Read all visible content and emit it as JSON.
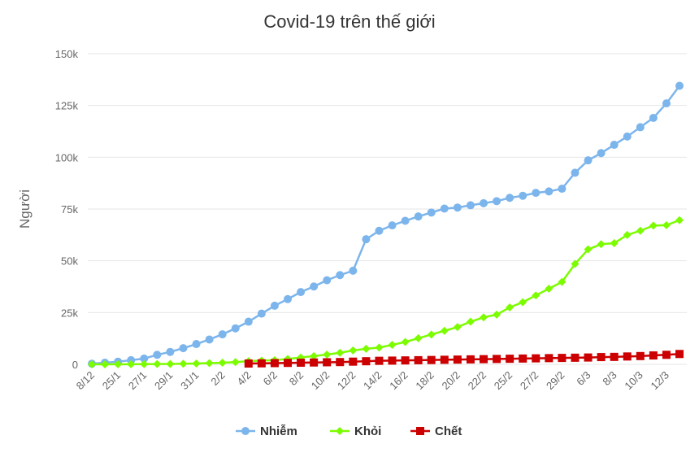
{
  "chart_data": {
    "type": "line",
    "title": "Covid-19 trên thế giới",
    "y_label": "Người",
    "categories": [
      "8/12",
      null,
      "25/1",
      null,
      "27/1",
      null,
      "29/1",
      null,
      "31/1",
      null,
      "2/2",
      null,
      "4/2",
      null,
      "6/2",
      null,
      "8/2",
      null,
      "10/2",
      null,
      "12/2",
      null,
      "14/2",
      null,
      "16/2",
      null,
      "18/2",
      null,
      "20/2",
      null,
      "22/2",
      null,
      "25/2",
      null,
      "27/2",
      null,
      "29/2",
      null,
      "6/3",
      null,
      "8/3",
      null,
      "10/3",
      null,
      "12/3",
      null
    ],
    "series": [
      {
        "name": "Nhiễm",
        "color": "#7cb5ec",
        "marker": "circle",
        "values": [
          300,
          800,
          1300,
          2000,
          2800,
          4600,
          6000,
          7800,
          9800,
          12000,
          14500,
          17400,
          20600,
          24500,
          28300,
          31500,
          34900,
          37600,
          40600,
          43100,
          45200,
          60400,
          64500,
          67100,
          69300,
          71400,
          73300,
          75200,
          75700,
          76800,
          77800,
          78800,
          80400,
          81400,
          82800,
          83500,
          84800,
          92500,
          98500,
          102000,
          106000,
          110000,
          114500,
          119000,
          126000,
          134500
        ]
      },
      {
        "name": "Khỏi",
        "color": "#7cfc00",
        "marker": "diamond",
        "values": [
          0,
          10,
          30,
          50,
          100,
          130,
          200,
          300,
          400,
          600,
          800,
          1100,
          1500,
          1800,
          2000,
          2600,
          3300,
          4000,
          4700,
          5600,
          6700,
          7500,
          8100,
          9400,
          10800,
          12600,
          14400,
          16200,
          18000,
          20600,
          22700,
          24000,
          27500,
          30000,
          33300,
          36500,
          39800,
          48500,
          55500,
          58000,
          58500,
          62500,
          64500,
          67000,
          67200,
          69600
        ]
      },
      {
        "name": "Chết",
        "color": "#cc0000",
        "marker": "square",
        "values": [
          null,
          null,
          null,
          null,
          null,
          null,
          null,
          null,
          null,
          null,
          null,
          null,
          400,
          500,
          600,
          700,
          800,
          900,
          1000,
          1100,
          1300,
          1500,
          1700,
          1800,
          1900,
          2000,
          2100,
          2200,
          2300,
          2400,
          2500,
          2600,
          2700,
          2800,
          2900,
          3000,
          3100,
          3200,
          3300,
          3500,
          3600,
          3800,
          4000,
          4300,
          4600,
          5000
        ]
      }
    ],
    "ylim": [
      0,
      150000
    ],
    "yticks": [
      0,
      {
        "value": 25000,
        "label": "25k"
      },
      {
        "value": 50000,
        "label": "50k"
      },
      {
        "value": 75000,
        "label": "75k"
      },
      {
        "value": 100000,
        "label": "100k"
      },
      {
        "value": 125000,
        "label": "125k"
      },
      {
        "value": 150000,
        "label": "150k"
      }
    ],
    "grid": true,
    "legend": "bottom"
  }
}
